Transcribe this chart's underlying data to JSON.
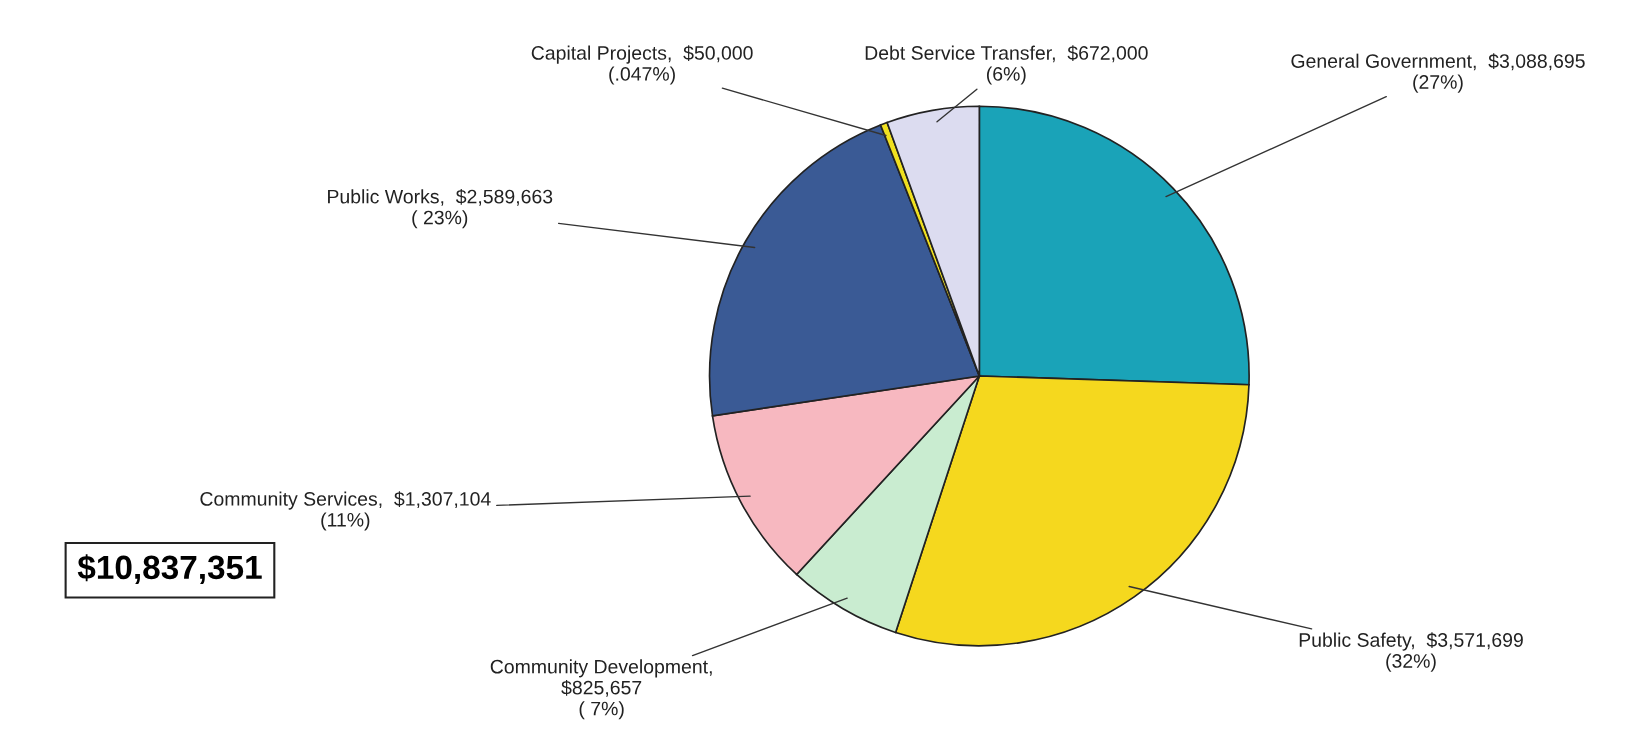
{
  "chart_data": {
    "type": "pie",
    "categories": [
      "General Government,  $3,088,695\n(27%)",
      "Public Safety,  $3,571,699\n(32%)",
      "Community Development,\n$825,657\n( 7%)",
      "Community Services,  $1,307,104\n(11%)",
      "Public Works,  $2,589,663\n( 23%)",
      "Capital Projects,  $50,000\n(.047%)",
      "Debt Service Transfer,  $672,000\n(6%)"
    ],
    "values": [
      3088695,
      3571699,
      825657,
      1307104,
      2589663,
      50000,
      672000
    ],
    "colors": [
      "#1aa3b8",
      "#f5d81e",
      "#c9ecd0",
      "#f7b8c0",
      "#3a5a95",
      "#f0e020",
      "#dcdcf0"
    ],
    "annotations": [
      "$10,837,351"
    ]
  }
}
